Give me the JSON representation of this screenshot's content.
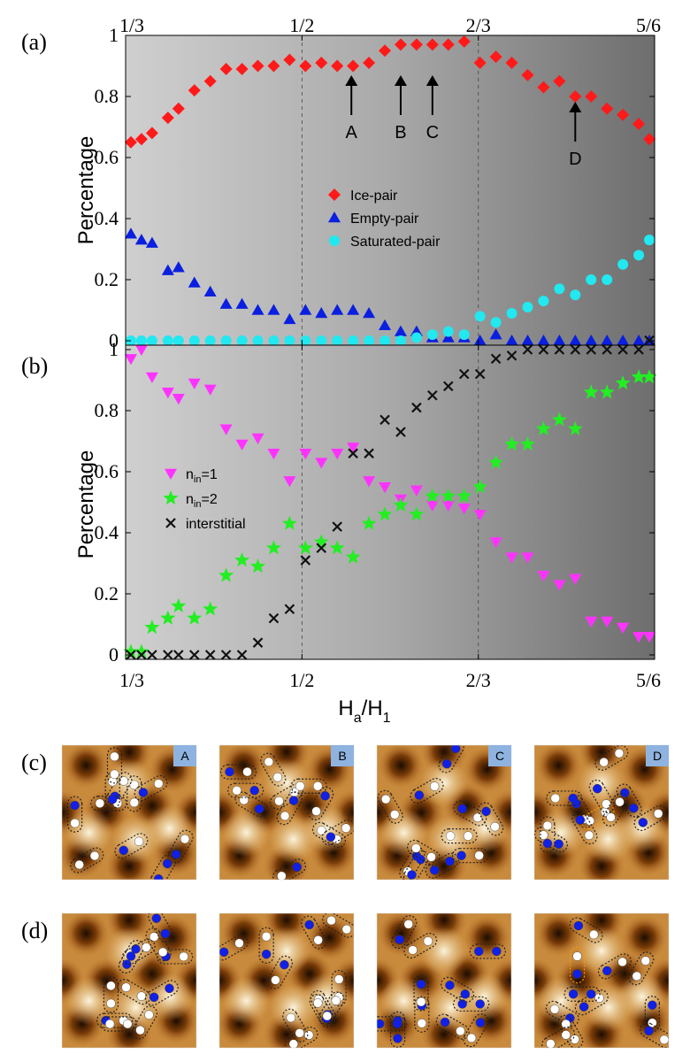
{
  "colors": {
    "ice_pair": "#ff1a1a",
    "empty_pair": "#0a1fe0",
    "saturated_pair": "#22e8f0",
    "nin1": "#ff33ff",
    "nin2": "#22ee22",
    "interstitial": "#111111",
    "badge": "#8fb3e0",
    "dot_blue": "#1020e6",
    "dot_white": "#ffffff",
    "pair_outline": "#222222",
    "highlight_outline": "#ff9900"
  },
  "x_axis": {
    "label_main": "H",
    "label_sub1": "a",
    "label_mid": "/H",
    "label_sub2": "1",
    "tick_values": [
      0.3333,
      0.5,
      0.6667,
      0.8333
    ],
    "tick_labels": [
      "1/3",
      "1/2",
      "2/3",
      "5/6"
    ],
    "xlim": [
      0.3333,
      0.8333
    ]
  },
  "panel_labels": [
    "(a)",
    "(b)",
    "(c)",
    "(d)"
  ],
  "chart_data": [
    {
      "type": "scatter",
      "panel": "(a)",
      "ylabel": "Percentage",
      "ylim": [
        0,
        1
      ],
      "yticks": [
        0,
        0.2,
        0.4,
        0.6,
        0.8,
        1
      ],
      "ytick_labels": [
        "0",
        "0.2",
        "0.4",
        "0.6",
        "0.8",
        "1"
      ],
      "legend_position": "center-right",
      "series": [
        {
          "name": "Ice-pair",
          "marker": "diamond",
          "color_key": "ice_pair",
          "x": [
            0.3383,
            0.3483,
            0.3583,
            0.3733,
            0.3833,
            0.3983,
            0.4133,
            0.4283,
            0.4433,
            0.4583,
            0.4733,
            0.4883,
            0.5033,
            0.5183,
            0.5333,
            0.5483,
            0.5633,
            0.5783,
            0.5933,
            0.6083,
            0.6233,
            0.6383,
            0.6533,
            0.6683,
            0.6833,
            0.6983,
            0.7133,
            0.7283,
            0.7433,
            0.7583,
            0.7733,
            0.7883,
            0.8033,
            0.8183,
            0.8283
          ],
          "y": [
            0.65,
            0.66,
            0.68,
            0.73,
            0.76,
            0.82,
            0.85,
            0.89,
            0.89,
            0.9,
            0.9,
            0.92,
            0.9,
            0.91,
            0.9,
            0.9,
            0.91,
            0.95,
            0.97,
            0.97,
            0.97,
            0.97,
            0.98,
            0.91,
            0.93,
            0.91,
            0.87,
            0.83,
            0.85,
            0.8,
            0.8,
            0.76,
            0.74,
            0.71,
            0.66
          ]
        },
        {
          "name": "Empty-pair",
          "marker": "triangle-up",
          "color_key": "empty_pair",
          "x": [
            0.3383,
            0.3483,
            0.3583,
            0.3733,
            0.3833,
            0.3983,
            0.4133,
            0.4283,
            0.4433,
            0.4583,
            0.4733,
            0.4883,
            0.5033,
            0.5183,
            0.5333,
            0.5483,
            0.5633,
            0.5783,
            0.5933,
            0.6083,
            0.6233,
            0.6383,
            0.6533,
            0.6683,
            0.6833,
            0.6983,
            0.7133,
            0.7283,
            0.7433,
            0.7583,
            0.7733,
            0.7883,
            0.8033,
            0.8183,
            0.8283
          ],
          "y": [
            0.35,
            0.33,
            0.32,
            0.23,
            0.24,
            0.19,
            0.16,
            0.12,
            0.12,
            0.1,
            0.1,
            0.07,
            0.1,
            0.09,
            0.1,
            0.1,
            0.09,
            0.05,
            0.03,
            0.03,
            0.01,
            0.01,
            0.01,
            0.0,
            0.02,
            0.0,
            0.0,
            0.0,
            0.0,
            0.0,
            0.0,
            0.0,
            0.0,
            0.0,
            0.0
          ]
        },
        {
          "name": "Saturated-pair",
          "marker": "circle",
          "color_key": "saturated_pair",
          "x": [
            0.3383,
            0.3483,
            0.3583,
            0.3733,
            0.3833,
            0.3983,
            0.4133,
            0.4283,
            0.4433,
            0.4583,
            0.4733,
            0.4883,
            0.5033,
            0.5183,
            0.5333,
            0.5483,
            0.5633,
            0.5783,
            0.5933,
            0.6083,
            0.6233,
            0.6383,
            0.6533,
            0.6683,
            0.6833,
            0.6983,
            0.7133,
            0.7283,
            0.7433,
            0.7583,
            0.7733,
            0.7883,
            0.8033,
            0.8183,
            0.8283
          ],
          "y": [
            0,
            0,
            0,
            0,
            0,
            0,
            0,
            0,
            0,
            0,
            0,
            0,
            0,
            0,
            0,
            0,
            0,
            0,
            0,
            0.01,
            0.02,
            0.03,
            0.02,
            0.08,
            0.06,
            0.09,
            0.11,
            0.13,
            0.17,
            0.15,
            0.2,
            0.2,
            0.25,
            0.28,
            0.33
          ]
        }
      ],
      "annotations": [
        {
          "text": "A",
          "x": 0.5467
        },
        {
          "text": "B",
          "x": 0.5933
        },
        {
          "text": "C",
          "x": 0.6233
        },
        {
          "text": "D",
          "x": 0.7583
        }
      ]
    },
    {
      "type": "scatter",
      "panel": "(b)",
      "ylabel": "Percentage",
      "ylim": [
        0,
        1
      ],
      "yticks": [
        0,
        0.2,
        0.4,
        0.6,
        0.8,
        1
      ],
      "ytick_labels": [
        "0",
        "0.2",
        "0.4",
        "0.6",
        "0.8",
        "1"
      ],
      "legend_position": "center-left",
      "series": [
        {
          "name_main": "n",
          "name_sub": "in",
          "name_tail": "=1",
          "marker": "triangle-down",
          "color_key": "nin1",
          "x": [
            0.3383,
            0.3483,
            0.3583,
            0.3733,
            0.3833,
            0.3983,
            0.4133,
            0.4283,
            0.4433,
            0.4583,
            0.4733,
            0.4883,
            0.5033,
            0.5183,
            0.5333,
            0.5483,
            0.5633,
            0.5783,
            0.5933,
            0.6083,
            0.6233,
            0.6383,
            0.6533,
            0.6683,
            0.6833,
            0.6983,
            0.7133,
            0.7283,
            0.7433,
            0.7583,
            0.7733,
            0.7883,
            0.8033,
            0.8183,
            0.8283
          ],
          "y": [
            0.97,
            1.0,
            0.91,
            0.86,
            0.84,
            0.89,
            0.87,
            0.74,
            0.69,
            0.71,
            0.66,
            0.57,
            0.66,
            0.63,
            0.66,
            0.68,
            0.57,
            0.55,
            0.51,
            0.54,
            0.49,
            0.49,
            0.48,
            0.46,
            0.37,
            0.32,
            0.32,
            0.26,
            0.23,
            0.25,
            0.11,
            0.11,
            0.09,
            0.06,
            0.06
          ]
        },
        {
          "name_main": "n",
          "name_sub": "in",
          "name_tail": "=2",
          "marker": "star",
          "color_key": "nin2",
          "x": [
            0.3383,
            0.3483,
            0.3583,
            0.3733,
            0.3833,
            0.3983,
            0.4133,
            0.4283,
            0.4433,
            0.4583,
            0.4733,
            0.4883,
            0.5033,
            0.5183,
            0.5333,
            0.5483,
            0.5633,
            0.5783,
            0.5933,
            0.6083,
            0.6233,
            0.6383,
            0.6533,
            0.6683,
            0.6833,
            0.6983,
            0.7133,
            0.7283,
            0.7433,
            0.7583,
            0.7733,
            0.7883,
            0.8033,
            0.8183,
            0.8283
          ],
          "y": [
            0.01,
            0.01,
            0.09,
            0.12,
            0.16,
            0.12,
            0.15,
            0.26,
            0.31,
            0.29,
            0.35,
            0.43,
            0.35,
            0.37,
            0.35,
            0.32,
            0.43,
            0.46,
            0.49,
            0.46,
            0.52,
            0.52,
            0.52,
            0.55,
            0.63,
            0.69,
            0.69,
            0.74,
            0.77,
            0.74,
            0.86,
            0.86,
            0.89,
            0.91,
            0.91
          ]
        },
        {
          "name": "interstitial",
          "marker": "x",
          "color_key": "interstitial",
          "x": [
            0.3383,
            0.3483,
            0.3583,
            0.3733,
            0.3833,
            0.3983,
            0.4133,
            0.4283,
            0.4433,
            0.4583,
            0.4733,
            0.4883,
            0.5033,
            0.5183,
            0.5333,
            0.5483,
            0.5633,
            0.5783,
            0.5933,
            0.6083,
            0.6233,
            0.6383,
            0.6533,
            0.6683,
            0.6833,
            0.6983,
            0.7133,
            0.7283,
            0.7433,
            0.7583,
            0.7733,
            0.7883,
            0.8033,
            0.8183,
            0.8283
          ],
          "y": [
            0,
            0,
            0,
            0,
            0,
            0,
            0,
            0,
            0,
            0.04,
            0.12,
            0.15,
            0.31,
            0.35,
            0.42,
            0.66,
            0.66,
            0.77,
            0.73,
            0.81,
            0.85,
            0.88,
            0.92,
            0.92,
            0.97,
            0.98,
            1.0,
            1.0,
            1.0,
            1.0,
            1.0,
            1.0,
            1.0,
            1.0,
            1.03
          ]
        }
      ]
    }
  ],
  "images": {
    "row_c_badges": [
      "A",
      "B",
      "C",
      "D"
    ],
    "row_d_badges": [
      "",
      "",
      "",
      ""
    ]
  }
}
